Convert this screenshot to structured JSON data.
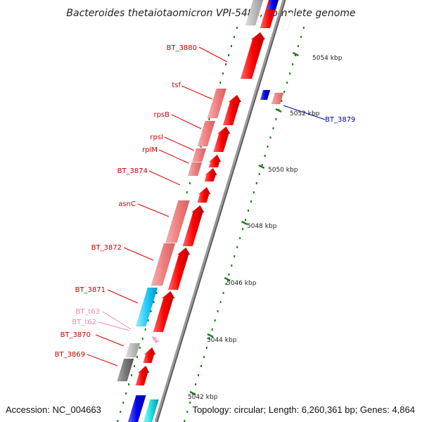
{
  "title": "Bacteroides thetaiotaomicron VPI-5482, complete genome",
  "footer": {
    "accession": "Accession: NC_004663",
    "topology": "Topology: circular; Length: 6,260,361 bp; Genes: 4,864"
  },
  "scale_labels": [
    "5054 kbp",
    "5052 kbp",
    "5050 kbp",
    "5048 kbp",
    "5046 kbp",
    "5044 kbp",
    "5042 kbp"
  ],
  "gene_labels": [
    {
      "text": "BT_3880",
      "color": "#cc0000"
    },
    {
      "text": "tsf",
      "color": "#cc0000"
    },
    {
      "text": "rpsB",
      "color": "#cc0000"
    },
    {
      "text": "rpsI",
      "color": "#cc0000"
    },
    {
      "text": "rplM",
      "color": "#cc0000"
    },
    {
      "text": "BT_3874",
      "color": "#cc0000"
    },
    {
      "text": "asnC",
      "color": "#cc0000"
    },
    {
      "text": "BT_3872",
      "color": "#cc0000"
    },
    {
      "text": "BT_3871",
      "color": "#cc0000"
    },
    {
      "text": "BT_t63",
      "color": "#ee88aa"
    },
    {
      "text": "BT_t62",
      "color": "#ee88aa"
    },
    {
      "text": "BT_3870",
      "color": "#cc0000"
    },
    {
      "text": "BT_3869",
      "color": "#cc0000"
    },
    {
      "text": "BT_3879",
      "color": "#000099"
    }
  ],
  "colors": {
    "cds_forward": "#ff0000",
    "cds_light": "#f08080",
    "cds_reverse": "#0000ee",
    "cyan": "#22ccff",
    "grey": "#aaaaaa",
    "trna": "#ff99cc",
    "ticks": "#1a7f1a"
  }
}
